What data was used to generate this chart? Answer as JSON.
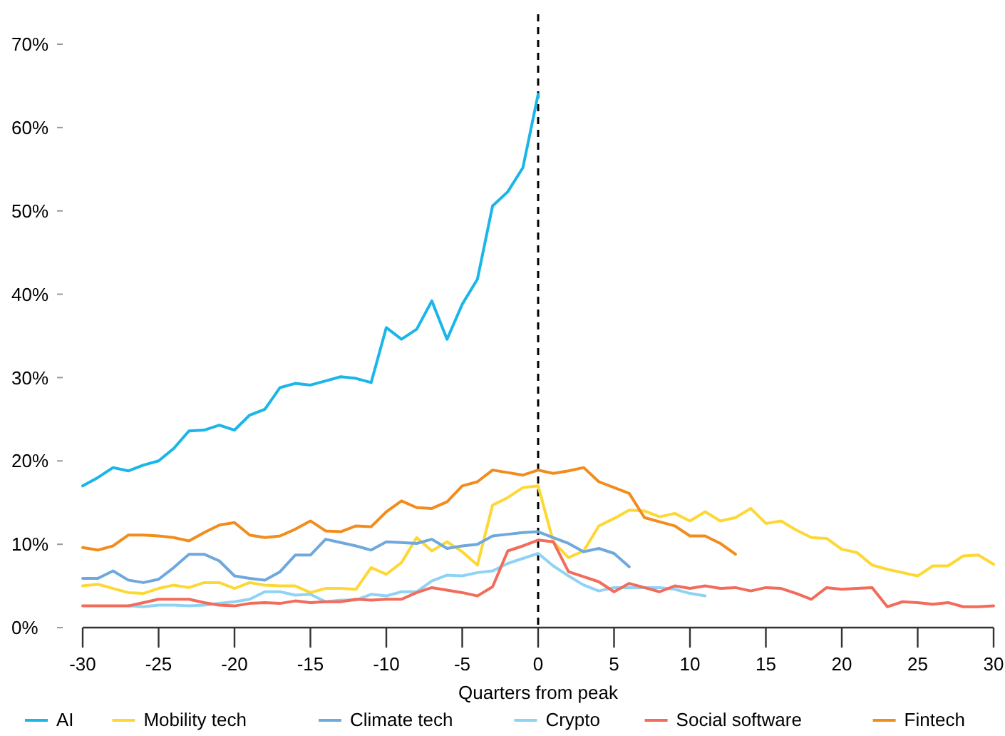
{
  "chart_data": {
    "type": "line",
    "xlabel": "Quarters from peak",
    "xlim": [
      -30,
      30
    ],
    "xticks": [
      -30,
      -25,
      -20,
      -15,
      -10,
      -5,
      0,
      5,
      10,
      15,
      20,
      25,
      30
    ],
    "ylim": [
      0,
      70
    ],
    "yticks": [
      {
        "value": 0,
        "label": "0%"
      },
      {
        "value": 10,
        "label": "10%"
      },
      {
        "value": 20,
        "label": "20%"
      },
      {
        "value": 30,
        "label": "30%"
      },
      {
        "value": 40,
        "label": "40%"
      },
      {
        "value": 50,
        "label": "50%"
      },
      {
        "value": 60,
        "label": "60%"
      },
      {
        "value": 70,
        "label": "70%"
      }
    ],
    "grid": false,
    "legend": "bottom",
    "marker": "none",
    "line_style": "solid",
    "ref_lines": [
      {
        "axis": "x",
        "value": 0,
        "line_style": "dashed",
        "color": "#000000"
      }
    ],
    "x": [
      -30,
      -29,
      -28,
      -27,
      -26,
      -25,
      -24,
      -23,
      -22,
      -21,
      -20,
      -19,
      -18,
      -17,
      -16,
      -15,
      -14,
      -13,
      -12,
      -11,
      -10,
      -9,
      -8,
      -7,
      -6,
      -5,
      -4,
      -3,
      -2,
      -1,
      0,
      1,
      2,
      3,
      4,
      5,
      6,
      7,
      8,
      9,
      10,
      11,
      12,
      13,
      14,
      15,
      16,
      17,
      18,
      19,
      20,
      21,
      22,
      23,
      24,
      25,
      26,
      27,
      28,
      29,
      30
    ],
    "series": [
      {
        "name": "AI",
        "color": "#1ab6ea",
        "values": [
          17,
          18,
          19.2,
          18.8,
          19.5,
          20,
          21.5,
          23.6,
          23.7,
          24.3,
          23.7,
          25.5,
          26.2,
          28.8,
          29.3,
          29.1,
          29.6,
          30.1,
          29.9,
          29.4,
          36,
          34.6,
          35.8,
          39.2,
          34.6,
          38.8,
          41.8,
          50.6,
          52.3,
          55.2,
          64,
          null,
          null,
          null,
          null,
          null,
          null,
          null,
          null,
          null,
          null,
          null,
          null,
          null,
          null,
          null,
          null,
          null,
          null,
          null,
          null,
          null,
          null,
          null,
          null,
          null,
          null,
          null,
          null,
          null,
          null
        ]
      },
      {
        "name": "Mobility tech",
        "color": "#fdd835",
        "values": [
          5.0,
          5.2,
          4.7,
          4.2,
          4.1,
          4.7,
          5.1,
          4.8,
          5.4,
          5.4,
          4.7,
          5.4,
          5.1,
          5.0,
          5.0,
          4.2,
          4.7,
          4.7,
          4.6,
          7.2,
          6.4,
          7.8,
          10.8,
          9.2,
          10.3,
          9.1,
          7.5,
          14.7,
          15.6,
          16.8,
          17.0,
          10.3,
          8.4,
          9.2,
          12.2,
          13.1,
          14.1,
          14.0,
          13.3,
          13.7,
          12.8,
          13.9,
          12.8,
          13.2,
          14.3,
          12.5,
          12.8,
          11.7,
          10.8,
          10.7,
          9.4,
          9.0,
          7.5,
          7.0,
          6.6,
          6.2,
          7.4,
          7.4,
          8.6,
          8.7,
          7.6
        ]
      },
      {
        "name": "Climate tech",
        "color": "#6fa8dc",
        "values": [
          5.9,
          5.9,
          6.8,
          5.7,
          5.4,
          5.8,
          7.2,
          8.8,
          8.8,
          8.0,
          6.2,
          5.9,
          5.7,
          6.7,
          8.7,
          8.7,
          10.6,
          10.2,
          9.8,
          9.3,
          10.3,
          10.2,
          10.1,
          10.6,
          9.5,
          9.8,
          10.0,
          11.0,
          11.2,
          11.4,
          11.5,
          10.8,
          10.1,
          9.1,
          9.5,
          8.9,
          7.3,
          null,
          null,
          null,
          null,
          null,
          null,
          null,
          null,
          null,
          null,
          null,
          null,
          null,
          null,
          null,
          null,
          null,
          null,
          null,
          null,
          null,
          null,
          null,
          null
        ]
      },
      {
        "name": "Crypto",
        "color": "#8fd3f4",
        "values": [
          null,
          null,
          null,
          2.6,
          2.5,
          2.7,
          2.7,
          2.6,
          2.7,
          2.9,
          3.1,
          3.4,
          4.3,
          4.3,
          3.9,
          4.0,
          3.1,
          3.3,
          3.3,
          4.0,
          3.8,
          4.3,
          4.3,
          5.6,
          6.3,
          6.2,
          6.6,
          6.8,
          7.7,
          8.3,
          8.9,
          7.4,
          6.2,
          5.1,
          4.4,
          4.8,
          4.8,
          4.8,
          4.8,
          4.6,
          4.1,
          3.8,
          null,
          null,
          null,
          null,
          null,
          null,
          null,
          null,
          null,
          null,
          null,
          null,
          null,
          null,
          null,
          null,
          null,
          null,
          null
        ]
      },
      {
        "name": "Social software",
        "color": "#f26b5b",
        "values": [
          2.6,
          2.6,
          2.6,
          2.6,
          3.0,
          3.4,
          3.4,
          3.4,
          3.0,
          2.7,
          2.6,
          2.9,
          3.0,
          2.9,
          3.2,
          3.0,
          3.1,
          3.1,
          3.4,
          3.3,
          3.4,
          3.4,
          4.2,
          4.8,
          4.5,
          4.2,
          3.8,
          4.9,
          9.2,
          9.8,
          10.5,
          10.3,
          6.7,
          6.1,
          5.5,
          4.3,
          5.3,
          4.8,
          4.3,
          5.0,
          4.7,
          5.0,
          4.7,
          4.8,
          4.4,
          4.8,
          4.7,
          4.1,
          3.4,
          4.8,
          4.6,
          4.7,
          4.8,
          2.5,
          3.1,
          3.0,
          2.8,
          3.0,
          2.5,
          2.5,
          2.6
        ]
      },
      {
        "name": "Fintech",
        "color": "#f28c1c",
        "values": [
          9.6,
          9.3,
          9.8,
          11.1,
          11.1,
          11.0,
          10.8,
          10.4,
          11.4,
          12.3,
          12.6,
          11.1,
          10.8,
          11.0,
          11.8,
          12.8,
          11.6,
          11.5,
          12.2,
          12.1,
          13.9,
          15.2,
          14.4,
          14.3,
          15.1,
          17.0,
          17.5,
          18.9,
          18.6,
          18.3,
          18.9,
          18.5,
          18.8,
          19.2,
          17.5,
          16.8,
          16.1,
          13.2,
          12.7,
          12.2,
          11.0,
          11.0,
          10.1,
          8.8,
          null,
          null,
          null,
          null,
          null,
          null,
          null,
          null,
          null,
          null,
          null,
          null,
          null,
          null,
          null,
          null,
          null
        ]
      }
    ]
  }
}
